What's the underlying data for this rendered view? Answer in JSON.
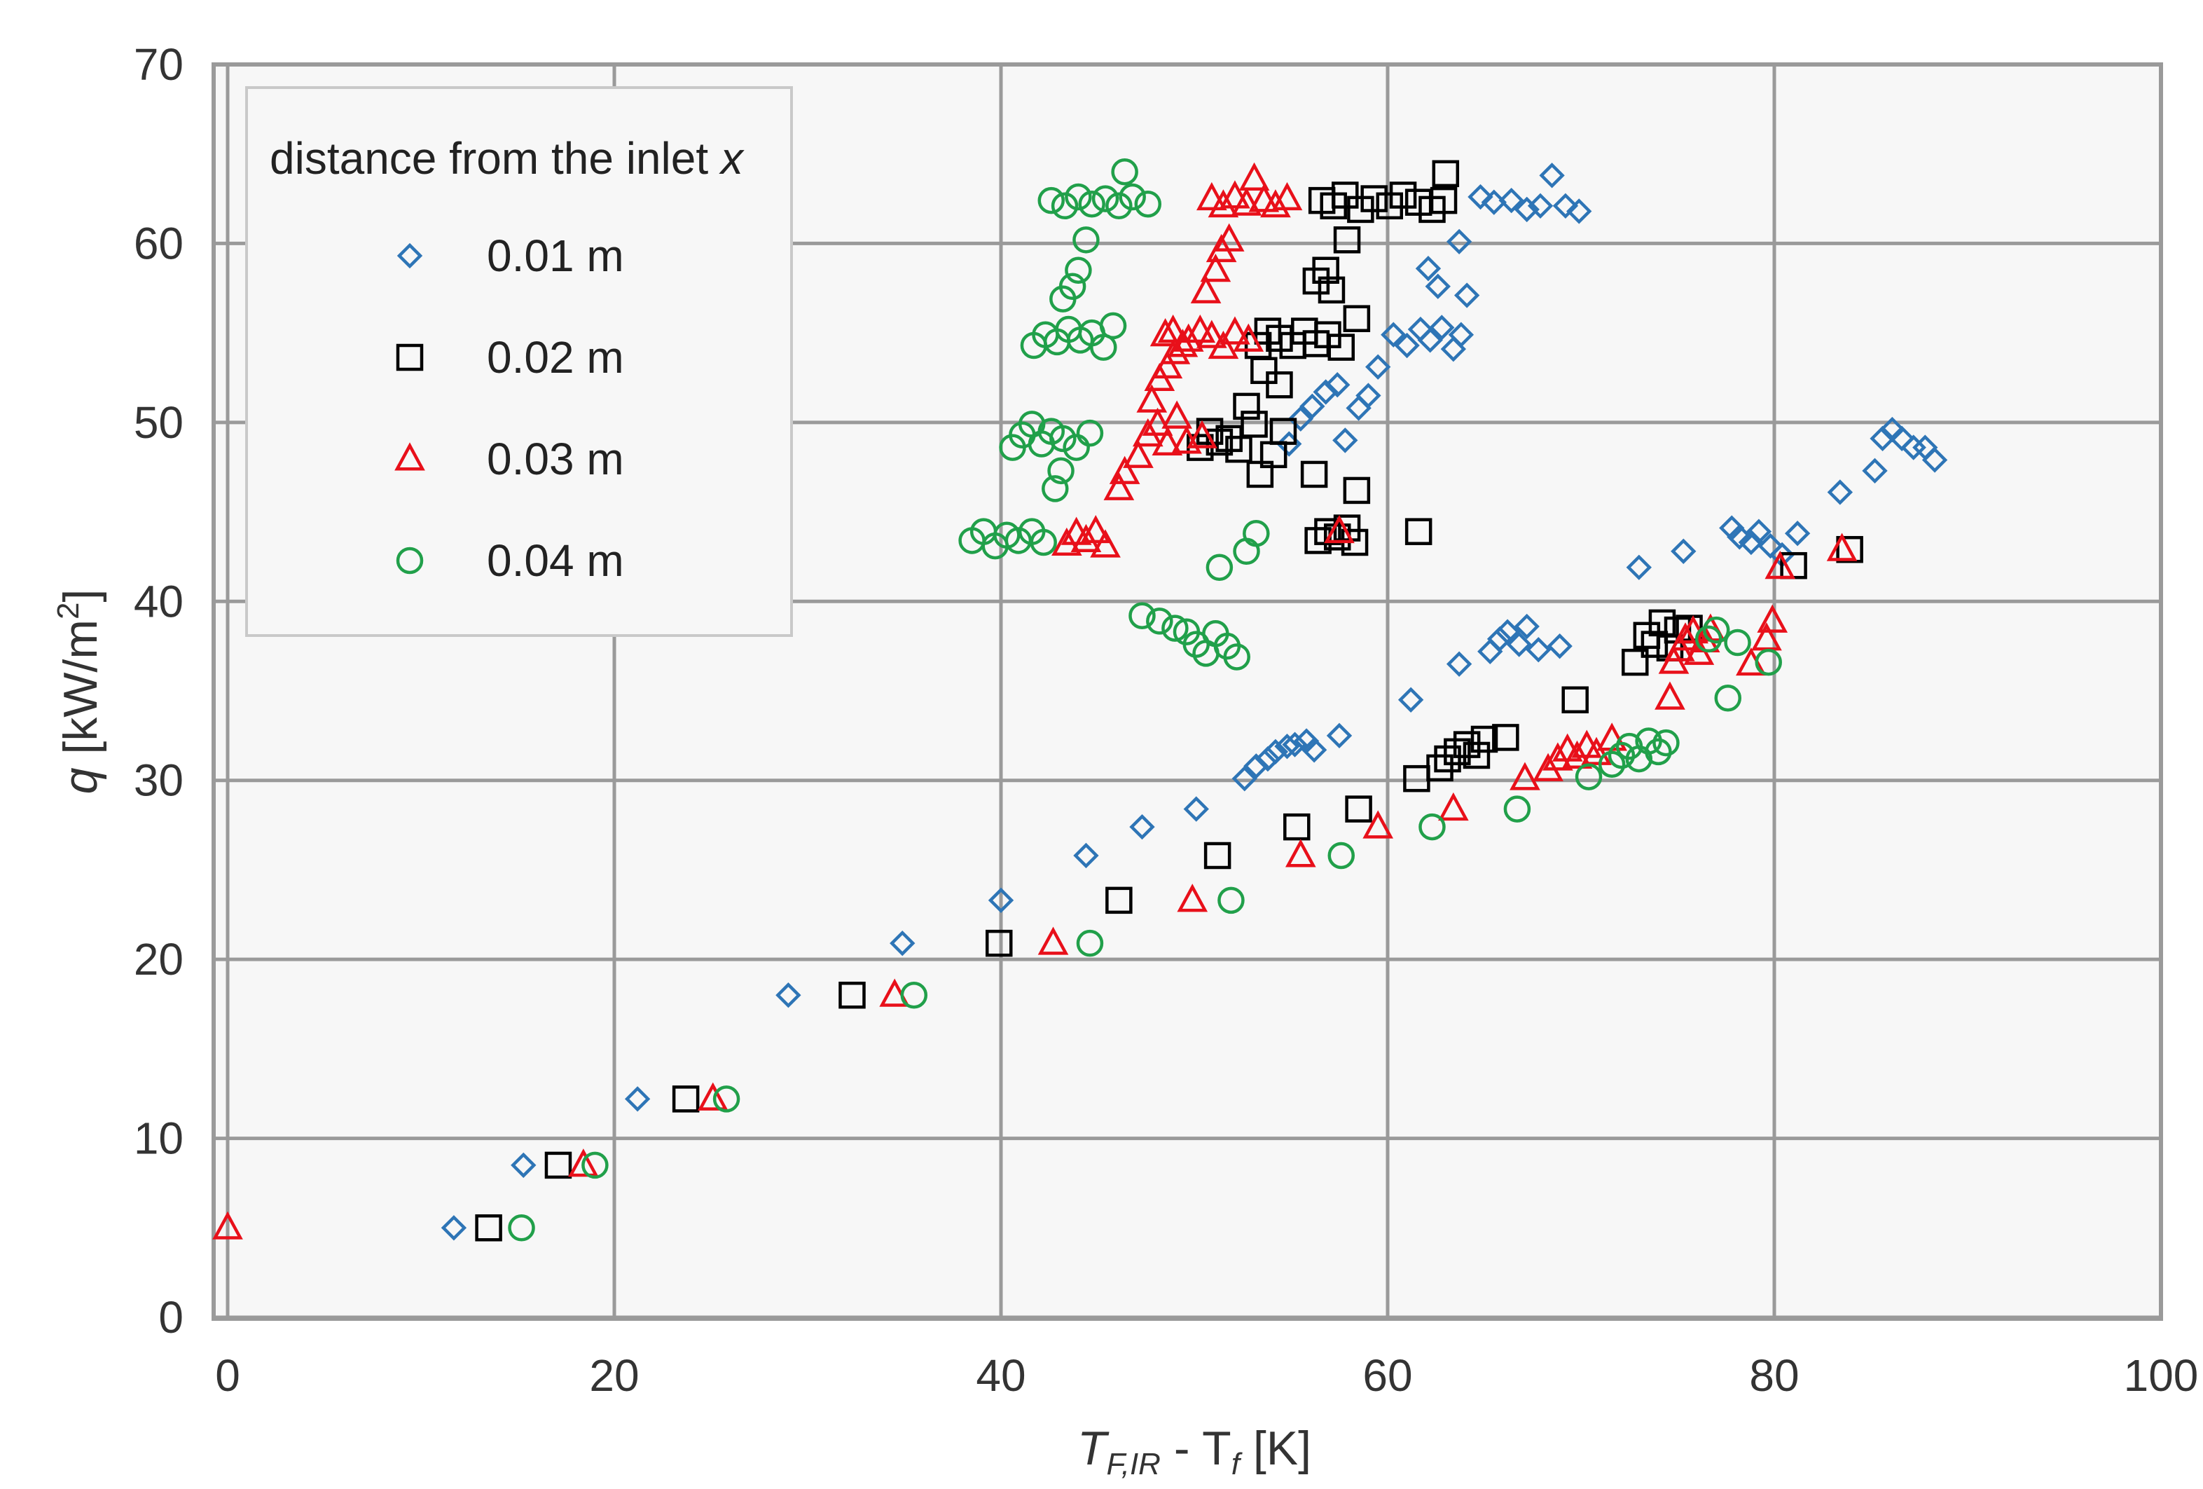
{
  "chart_data": {
    "type": "scatter",
    "title": "",
    "xlabel": {
      "main": "T",
      "sub": "F,IR",
      "mid": " - T",
      "sub2": "f",
      "unit": "  [K]"
    },
    "ylabel": {
      "main": "q",
      "unit": "  [kW/m",
      "sup": "2",
      "close": "]"
    },
    "xlim": [
      0,
      100
    ],
    "ylim": [
      0,
      70
    ],
    "xticks": [
      "0",
      "20",
      "40",
      "60",
      "80",
      "100"
    ],
    "yticks": [
      "0",
      "10",
      "20",
      "30",
      "40",
      "50",
      "60",
      "70"
    ],
    "grid": true,
    "legend": {
      "title": "distance from the inlet ",
      "title_var": "x",
      "position": "top-left"
    },
    "series": [
      {
        "name": "0.01 m",
        "marker": "diamond",
        "color": "#2E75B6",
        "points": [
          [
            11.7,
            5
          ],
          [
            15.3,
            8.5
          ],
          [
            21.2,
            12.2
          ],
          [
            29,
            18
          ],
          [
            34.9,
            20.9
          ],
          [
            40,
            23.3
          ],
          [
            44.4,
            25.8
          ],
          [
            47.3,
            27.4
          ],
          [
            50.1,
            28.4
          ],
          [
            52.6,
            30.1
          ],
          [
            53.2,
            30.8
          ],
          [
            53.8,
            31.2
          ],
          [
            54.2,
            31.6
          ],
          [
            54.8,
            31.9
          ],
          [
            55.2,
            32
          ],
          [
            55.8,
            32.2
          ],
          [
            56.2,
            31.7
          ],
          [
            57.5,
            32.5
          ],
          [
            61.2,
            34.5
          ],
          [
            63.7,
            36.5
          ],
          [
            65.3,
            37.2
          ],
          [
            65.8,
            37.9
          ],
          [
            66.2,
            38.3
          ],
          [
            66.8,
            37.6
          ],
          [
            67.2,
            38.6
          ],
          [
            67.8,
            37.3
          ],
          [
            68.9,
            37.5
          ],
          [
            73,
            41.9
          ],
          [
            75.3,
            42.8
          ],
          [
            77.8,
            44.1
          ],
          [
            78.2,
            43.6
          ],
          [
            78.8,
            43.3
          ],
          [
            79.2,
            43.9
          ],
          [
            79.8,
            43.1
          ],
          [
            80.4,
            42.6
          ],
          [
            81.2,
            43.8
          ],
          [
            83.4,
            46.1
          ],
          [
            85.2,
            47.3
          ],
          [
            85.6,
            49.1
          ],
          [
            86.1,
            49.6
          ],
          [
            86.6,
            49.1
          ],
          [
            87.2,
            48.6
          ],
          [
            87.8,
            48.6
          ],
          [
            88.3,
            47.9
          ],
          [
            54.9,
            48.8
          ],
          [
            55.5,
            50.2
          ],
          [
            56.1,
            50.9
          ],
          [
            56.8,
            51.7
          ],
          [
            57.4,
            52.1
          ],
          [
            57.8,
            49
          ],
          [
            58.5,
            50.8
          ],
          [
            59,
            51.5
          ],
          [
            59.5,
            53.1
          ],
          [
            60.3,
            54.9
          ],
          [
            61,
            54.3
          ],
          [
            61.7,
            55.2
          ],
          [
            62.2,
            54.6
          ],
          [
            62.8,
            55.3
          ],
          [
            63.4,
            54.1
          ],
          [
            63.8,
            54.9
          ],
          [
            62.1,
            58.6
          ],
          [
            62.6,
            57.6
          ],
          [
            63.7,
            60.1
          ],
          [
            64.1,
            57.1
          ],
          [
            64.8,
            62.6
          ],
          [
            65.5,
            62.3
          ],
          [
            66.4,
            62.4
          ],
          [
            67.2,
            61.9
          ],
          [
            67.9,
            62.1
          ],
          [
            68.5,
            63.8
          ],
          [
            69.2,
            62.1
          ],
          [
            69.9,
            61.8
          ]
        ]
      },
      {
        "name": "0.02 m",
        "marker": "square",
        "color": "#000000",
        "points": [
          [
            13.5,
            5
          ],
          [
            17.1,
            8.5
          ],
          [
            23.7,
            12.2
          ],
          [
            32.3,
            18
          ],
          [
            39.9,
            20.9
          ],
          [
            46.1,
            23.3
          ],
          [
            51.2,
            25.8
          ],
          [
            55.3,
            27.4
          ],
          [
            58.5,
            28.4
          ],
          [
            61.5,
            30.1
          ],
          [
            62.7,
            30.7
          ],
          [
            63.1,
            31.2
          ],
          [
            63.6,
            31.6
          ],
          [
            64.1,
            32
          ],
          [
            64.6,
            31.4
          ],
          [
            65,
            32.3
          ],
          [
            66.1,
            32.4
          ],
          [
            69.7,
            34.5
          ],
          [
            72.8,
            36.6
          ],
          [
            73.4,
            38.1
          ],
          [
            73.8,
            37.6
          ],
          [
            74.2,
            38.8
          ],
          [
            74.6,
            37.4
          ],
          [
            75,
            38.4
          ],
          [
            75.6,
            38.5
          ],
          [
            81,
            42
          ],
          [
            83.9,
            42.9
          ],
          [
            56.4,
            43.4
          ],
          [
            56.9,
            43.9
          ],
          [
            57.4,
            43.6
          ],
          [
            57.9,
            44.1
          ],
          [
            58.3,
            43.3
          ],
          [
            61.6,
            43.9
          ],
          [
            58.4,
            46.2
          ],
          [
            56.2,
            47.1
          ],
          [
            53.4,
            47.1
          ],
          [
            54.1,
            48.2
          ],
          [
            54.6,
            49.5
          ],
          [
            50.3,
            48.6
          ],
          [
            50.8,
            49.5
          ],
          [
            51.3,
            48.9
          ],
          [
            51.8,
            49.1
          ],
          [
            52.3,
            48.5
          ],
          [
            52.7,
            50.9
          ],
          [
            53.1,
            49.9
          ],
          [
            53.6,
            52.9
          ],
          [
            54.4,
            52.1
          ],
          [
            53.3,
            54.3
          ],
          [
            53.8,
            55.1
          ],
          [
            54.4,
            54.7
          ],
          [
            55.1,
            54.3
          ],
          [
            55.7,
            55.1
          ],
          [
            56.3,
            54.4
          ],
          [
            56.9,
            54.9
          ],
          [
            57.6,
            54.2
          ],
          [
            58.4,
            55.8
          ],
          [
            57.1,
            57.4
          ],
          [
            56.8,
            58.5
          ],
          [
            56.3,
            57.9
          ],
          [
            57.9,
            60.2
          ],
          [
            56.6,
            62.4
          ],
          [
            57.2,
            62.1
          ],
          [
            57.8,
            62.7
          ],
          [
            58.6,
            61.9
          ],
          [
            59.3,
            62.5
          ],
          [
            60.1,
            62.1
          ],
          [
            60.8,
            62.7
          ],
          [
            61.6,
            62.3
          ],
          [
            62.3,
            61.9
          ],
          [
            62.9,
            62.4
          ],
          [
            63,
            63.9
          ]
        ]
      },
      {
        "name": "0.03 m",
        "marker": "triangle",
        "color": "#E8101A",
        "points": [
          [
            0,
            5
          ],
          [
            18.4,
            8.5
          ],
          [
            25.1,
            12.2
          ],
          [
            34.5,
            18
          ],
          [
            42.7,
            20.9
          ],
          [
            49.9,
            23.3
          ],
          [
            55.5,
            25.8
          ],
          [
            59.5,
            27.4
          ],
          [
            63.4,
            28.4
          ],
          [
            67.1,
            30.1
          ],
          [
            68.3,
            30.6
          ],
          [
            68.8,
            31.2
          ],
          [
            69.3,
            31.7
          ],
          [
            69.8,
            31.3
          ],
          [
            70.3,
            31.9
          ],
          [
            70.8,
            31.5
          ],
          [
            71.6,
            32.3
          ],
          [
            74.6,
            34.6
          ],
          [
            74.8,
            36.6
          ],
          [
            75.1,
            37.3
          ],
          [
            75.4,
            37.9
          ],
          [
            75.8,
            38.3
          ],
          [
            76.1,
            37.1
          ],
          [
            76.4,
            37.8
          ],
          [
            76.7,
            38.4
          ],
          [
            78.8,
            36.5
          ],
          [
            79.6,
            37.9
          ],
          [
            79.9,
            38.9
          ],
          [
            80.3,
            41.9
          ],
          [
            83.5,
            42.9
          ],
          [
            57.5,
            43.9
          ],
          [
            43.4,
            43.2
          ],
          [
            43.9,
            43.8
          ],
          [
            44.4,
            43.4
          ],
          [
            44.9,
            43.9
          ],
          [
            45.4,
            43.1
          ],
          [
            46.1,
            46.3
          ],
          [
            46.4,
            47.2
          ],
          [
            47.1,
            48.1
          ],
          [
            47.6,
            49.3
          ],
          [
            48.1,
            49.9
          ],
          [
            48.6,
            48.8
          ],
          [
            49.1,
            50.3
          ],
          [
            49.6,
            48.9
          ],
          [
            50.4,
            49.2
          ],
          [
            47.8,
            51.2
          ],
          [
            48.2,
            52.4
          ],
          [
            48.6,
            53.1
          ],
          [
            49,
            53.9
          ],
          [
            49.4,
            54.3
          ],
          [
            48.5,
            54.9
          ],
          [
            48.9,
            55.1
          ],
          [
            49.7,
            54.6
          ],
          [
            50.3,
            55.1
          ],
          [
            50.9,
            54.8
          ],
          [
            51.5,
            54.2
          ],
          [
            52.1,
            55
          ],
          [
            52.8,
            54.6
          ],
          [
            50.6,
            57.3
          ],
          [
            51.1,
            58.5
          ],
          [
            51.4,
            59.6
          ],
          [
            51.8,
            60.2
          ],
          [
            50.9,
            62.5
          ],
          [
            51.5,
            62.1
          ],
          [
            52.1,
            62.6
          ],
          [
            52.7,
            62.2
          ],
          [
            53.1,
            63.6
          ],
          [
            53.6,
            62.4
          ],
          [
            54.2,
            62.1
          ],
          [
            54.8,
            62.5
          ]
        ]
      },
      {
        "name": "0.04 m",
        "marker": "circle",
        "color": "#21A04A",
        "points": [
          [
            15.2,
            5
          ],
          [
            19,
            8.5
          ],
          [
            25.8,
            12.2
          ],
          [
            35.5,
            18
          ],
          [
            44.6,
            20.9
          ],
          [
            51.9,
            23.3
          ],
          [
            57.6,
            25.8
          ],
          [
            62.3,
            27.4
          ],
          [
            66.7,
            28.4
          ],
          [
            70.4,
            30.2
          ],
          [
            71.6,
            30.9
          ],
          [
            72.1,
            31.4
          ],
          [
            72.5,
            31.9
          ],
          [
            73,
            31.2
          ],
          [
            73.5,
            32.2
          ],
          [
            74,
            31.6
          ],
          [
            74.4,
            32.1
          ],
          [
            76.6,
            37.9
          ],
          [
            77,
            38.4
          ],
          [
            77.6,
            34.6
          ],
          [
            78.1,
            37.7
          ],
          [
            79.7,
            36.6
          ],
          [
            47.3,
            39.2
          ],
          [
            48.2,
            38.9
          ],
          [
            49,
            38.5
          ],
          [
            49.6,
            38.3
          ],
          [
            50.1,
            37.6
          ],
          [
            50.6,
            37.1
          ],
          [
            51.1,
            38.2
          ],
          [
            51.7,
            37.5
          ],
          [
            52.2,
            36.9
          ],
          [
            51.3,
            41.9
          ],
          [
            52.7,
            42.8
          ],
          [
            53.2,
            43.8
          ],
          [
            38.5,
            43.4
          ],
          [
            39.1,
            43.9
          ],
          [
            39.7,
            43.1
          ],
          [
            40.3,
            43.7
          ],
          [
            40.9,
            43.4
          ],
          [
            41.6,
            43.9
          ],
          [
            42.2,
            43.3
          ],
          [
            40.6,
            48.6
          ],
          [
            41.1,
            49.3
          ],
          [
            41.6,
            49.9
          ],
          [
            42.1,
            48.8
          ],
          [
            42.6,
            49.5
          ],
          [
            43.2,
            49.1
          ],
          [
            43.9,
            48.6
          ],
          [
            44.6,
            49.4
          ],
          [
            42.8,
            46.3
          ],
          [
            43.1,
            47.3
          ],
          [
            41.7,
            54.3
          ],
          [
            42.3,
            54.9
          ],
          [
            42.9,
            54.5
          ],
          [
            43.5,
            55.2
          ],
          [
            44.1,
            54.6
          ],
          [
            44.7,
            55
          ],
          [
            45.3,
            54.2
          ],
          [
            45.8,
            55.4
          ],
          [
            43.2,
            56.9
          ],
          [
            43.7,
            57.6
          ],
          [
            44,
            58.5
          ],
          [
            44.4,
            60.2
          ],
          [
            42.6,
            62.4
          ],
          [
            43.3,
            62.1
          ],
          [
            44,
            62.6
          ],
          [
            44.7,
            62.2
          ],
          [
            45.4,
            62.5
          ],
          [
            46.1,
            62.1
          ],
          [
            46.8,
            62.6
          ],
          [
            47.6,
            62.2
          ],
          [
            46.4,
            64
          ]
        ]
      }
    ]
  }
}
